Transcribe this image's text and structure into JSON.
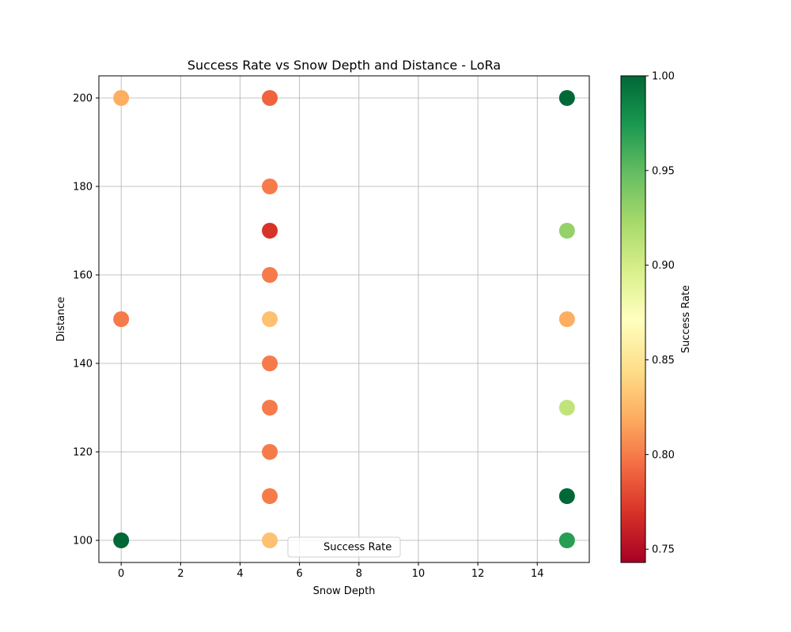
{
  "chart_data": {
    "type": "scatter",
    "title": "Success Rate vs Snow Depth and Distance - LoRa",
    "xlabel": "Snow Depth",
    "ylabel": "Distance",
    "xlim": [
      -0.75,
      15.75
    ],
    "ylim": [
      95,
      205
    ],
    "xticks": [
      0,
      2,
      4,
      6,
      8,
      10,
      12,
      14
    ],
    "yticks": [
      100,
      120,
      140,
      160,
      180,
      200
    ],
    "grid": true,
    "legend": {
      "placement": "lower-center",
      "entries": [
        "Success Rate"
      ]
    },
    "colorbar": {
      "label": "Success Rate",
      "colormap": "RdYlGn",
      "range": [
        0.743,
        1.0
      ],
      "ticks": [
        0.75,
        0.8,
        0.85,
        0.9,
        0.95,
        1.0
      ],
      "tick_labels": [
        "0.75",
        "0.80",
        "0.85",
        "0.90",
        "0.95",
        "1.00"
      ]
    },
    "points": [
      {
        "x": 0,
        "y": 200,
        "success_rate": 0.82
      },
      {
        "x": 0,
        "y": 150,
        "success_rate": 0.8
      },
      {
        "x": 0,
        "y": 100,
        "success_rate": 1.0
      },
      {
        "x": 5,
        "y": 200,
        "success_rate": 0.79
      },
      {
        "x": 5,
        "y": 180,
        "success_rate": 0.8
      },
      {
        "x": 5,
        "y": 170,
        "success_rate": 0.77
      },
      {
        "x": 5,
        "y": 160,
        "success_rate": 0.8
      },
      {
        "x": 5,
        "y": 150,
        "success_rate": 0.83
      },
      {
        "x": 5,
        "y": 140,
        "success_rate": 0.8
      },
      {
        "x": 5,
        "y": 130,
        "success_rate": 0.8
      },
      {
        "x": 5,
        "y": 120,
        "success_rate": 0.8
      },
      {
        "x": 5,
        "y": 110,
        "success_rate": 0.8
      },
      {
        "x": 5,
        "y": 100,
        "success_rate": 0.83
      },
      {
        "x": 15,
        "y": 200,
        "success_rate": 1.0
      },
      {
        "x": 15,
        "y": 170,
        "success_rate": 0.93
      },
      {
        "x": 15,
        "y": 150,
        "success_rate": 0.82
      },
      {
        "x": 15,
        "y": 130,
        "success_rate": 0.91
      },
      {
        "x": 15,
        "y": 110,
        "success_rate": 1.0
      },
      {
        "x": 15,
        "y": 100,
        "success_rate": 0.97
      }
    ]
  }
}
